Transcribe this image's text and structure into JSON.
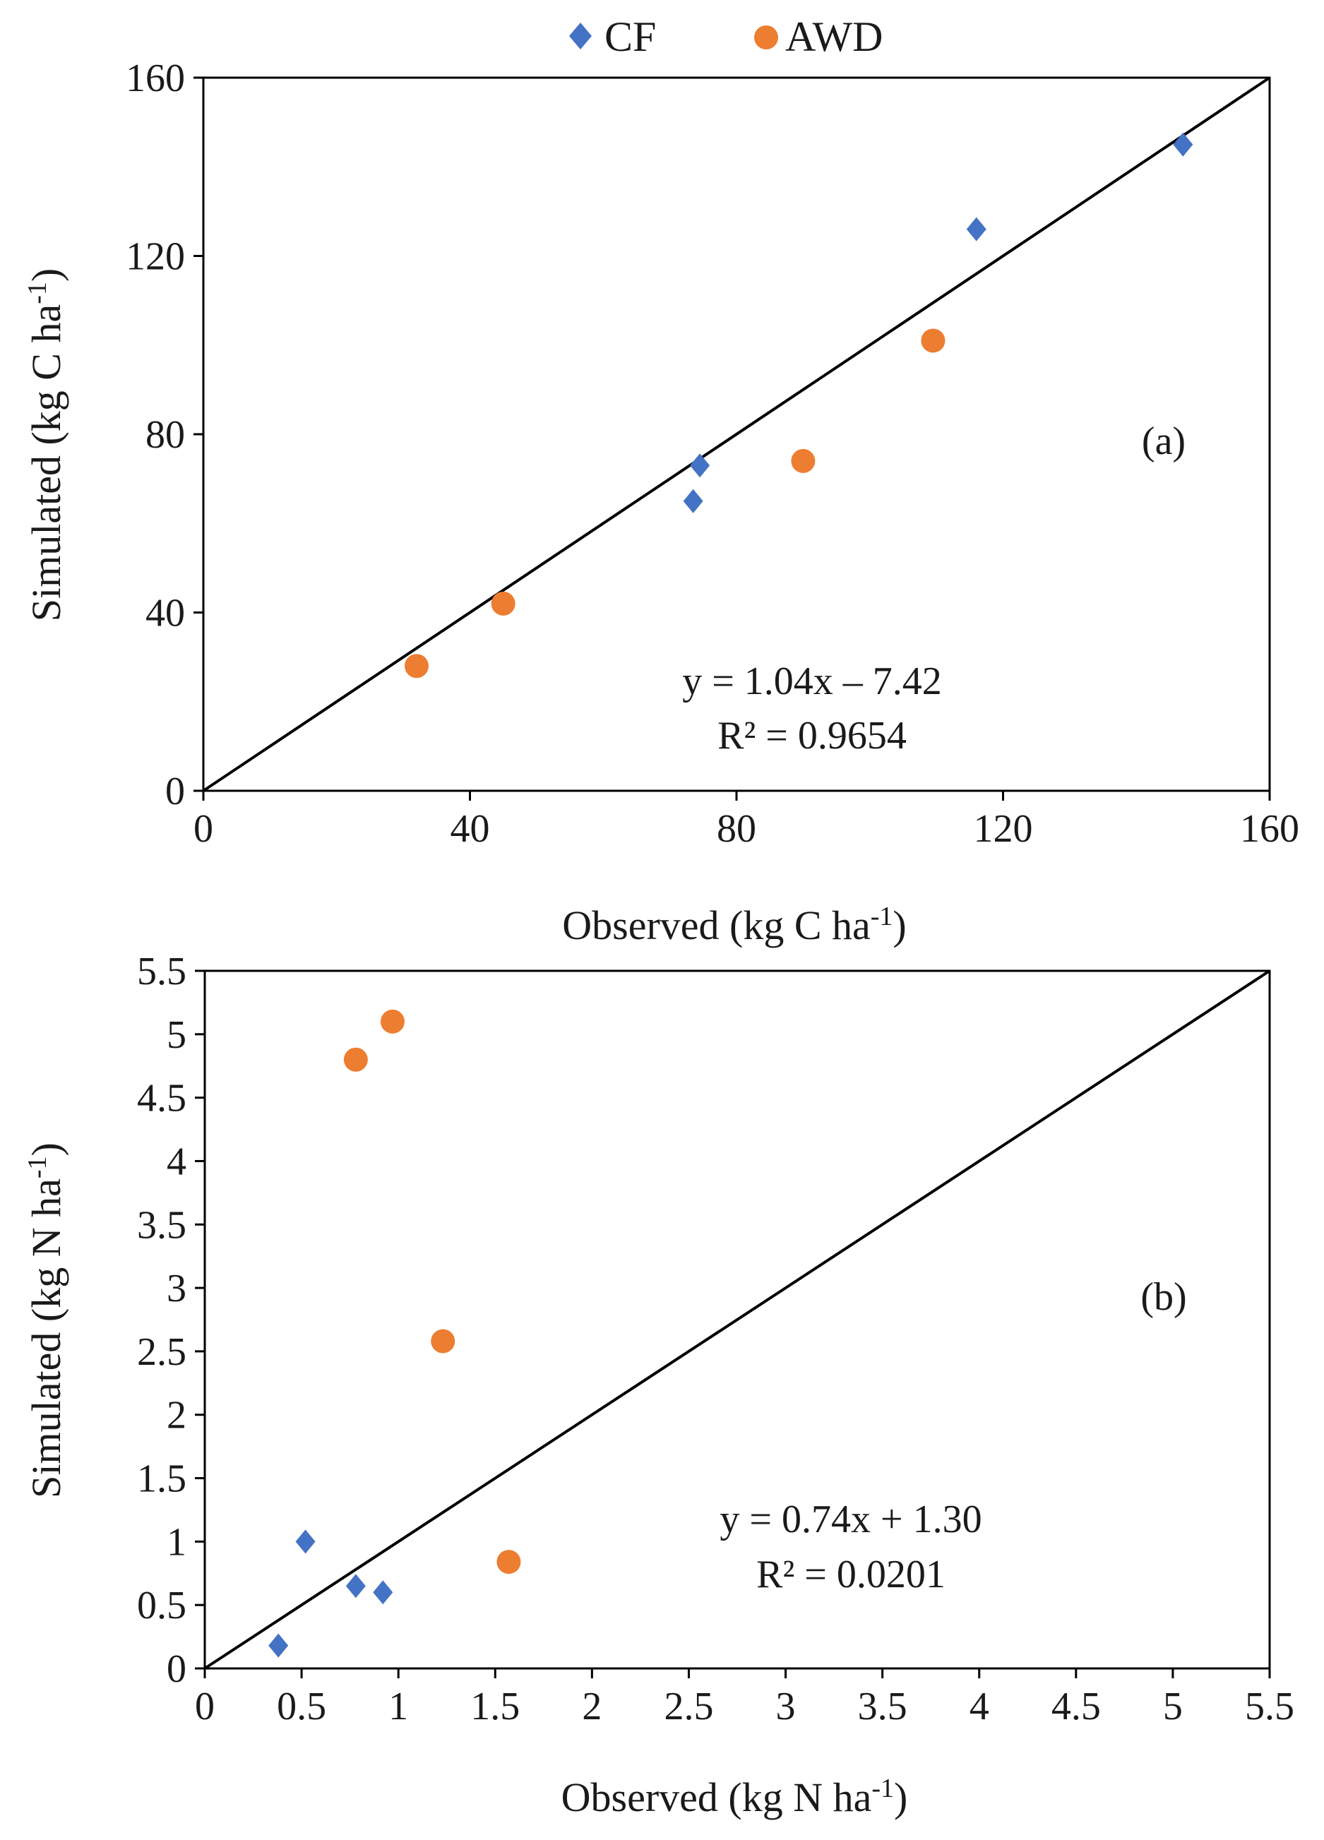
{
  "legend": {
    "items": [
      {
        "label": "CF",
        "color": "#4472c4",
        "marker": "diamond"
      },
      {
        "label": "AWD",
        "color": "#ed7d31",
        "marker": "circle"
      }
    ]
  },
  "chart_data": [
    {
      "type": "scatter",
      "panel_label": "(a)",
      "xlabel_parts": [
        "Observed (kg C ha",
        "-1",
        ")"
      ],
      "ylabel_parts": [
        "Simulated (kg C ha",
        "-1",
        ")"
      ],
      "xlim": [
        0,
        160
      ],
      "ylim": [
        0,
        160
      ],
      "xticks": [
        0,
        40,
        80,
        120,
        160
      ],
      "yticks": [
        0,
        40,
        80,
        120,
        160
      ],
      "xtick_labels": [
        "0",
        "40",
        "80",
        "120",
        "160"
      ],
      "ytick_labels": [
        "0",
        "40",
        "80",
        "120",
        "160"
      ],
      "one_to_one_line": true,
      "equation": "y = 1.04x – 7.42",
      "r_squared": "R² = 0.9654",
      "series": [
        {
          "name": "CF",
          "points": [
            [
              73.5,
              65
            ],
            [
              74.5,
              73
            ],
            [
              116,
              126
            ],
            [
              147,
              145
            ]
          ]
        },
        {
          "name": "AWD",
          "points": [
            [
              32,
              28
            ],
            [
              45,
              42
            ],
            [
              90,
              74
            ],
            [
              109.5,
              101
            ]
          ]
        }
      ]
    },
    {
      "type": "scatter",
      "panel_label": "(b)",
      "xlabel_parts": [
        "Observed (kg N ha",
        "-1",
        ")"
      ],
      "ylabel_parts": [
        "Simulated (kg N ha",
        "-1",
        ")"
      ],
      "xlim": [
        0,
        5.5
      ],
      "ylim": [
        0,
        5.5
      ],
      "xticks": [
        0,
        0.5,
        1,
        1.5,
        2,
        2.5,
        3,
        3.5,
        4,
        4.5,
        5,
        5.5
      ],
      "yticks": [
        0,
        0.5,
        1,
        1.5,
        2,
        2.5,
        3,
        3.5,
        4,
        4.5,
        5,
        5.5
      ],
      "xtick_labels": [
        "0",
        "0.5",
        "1",
        "1.5",
        "2",
        "2.5",
        "3",
        "3.5",
        "4",
        "4.5",
        "5",
        "5.5"
      ],
      "ytick_labels": [
        "0",
        "0.5",
        "1",
        "1.5",
        "2",
        "2.5",
        "3",
        "3.5",
        "4",
        "4.5",
        "5",
        "5.5"
      ],
      "one_to_one_line": true,
      "equation": "y = 0.74x + 1.30",
      "r_squared": "R² = 0.0201",
      "series": [
        {
          "name": "CF",
          "points": [
            [
              0.38,
              0.18
            ],
            [
              0.52,
              1.0
            ],
            [
              0.78,
              0.65
            ],
            [
              0.92,
              0.6
            ]
          ]
        },
        {
          "name": "AWD",
          "points": [
            [
              0.78,
              4.8
            ],
            [
              0.97,
              5.1
            ],
            [
              1.23,
              2.58
            ],
            [
              1.57,
              0.84
            ]
          ]
        }
      ]
    }
  ]
}
